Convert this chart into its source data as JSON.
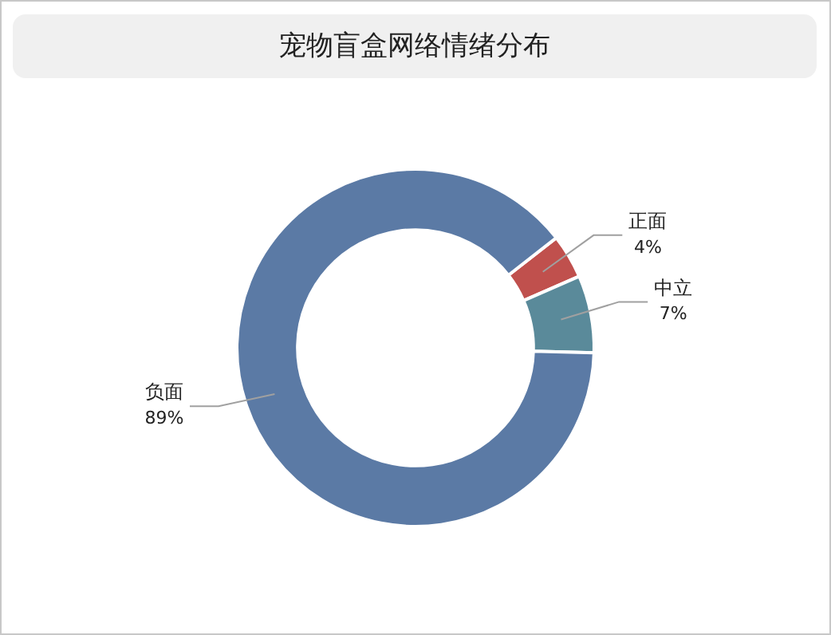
{
  "chart_data": {
    "type": "donut",
    "title": "宠物盲盒网络情绪分布",
    "categories": [
      "正面",
      "中立",
      "负面"
    ],
    "values": [
      4,
      7,
      89
    ],
    "value_labels": [
      "4%",
      "7%",
      "89%"
    ],
    "colors": [
      "#c0504d",
      "#5a8a9a",
      "#5b7aa5"
    ],
    "legend": false
  }
}
